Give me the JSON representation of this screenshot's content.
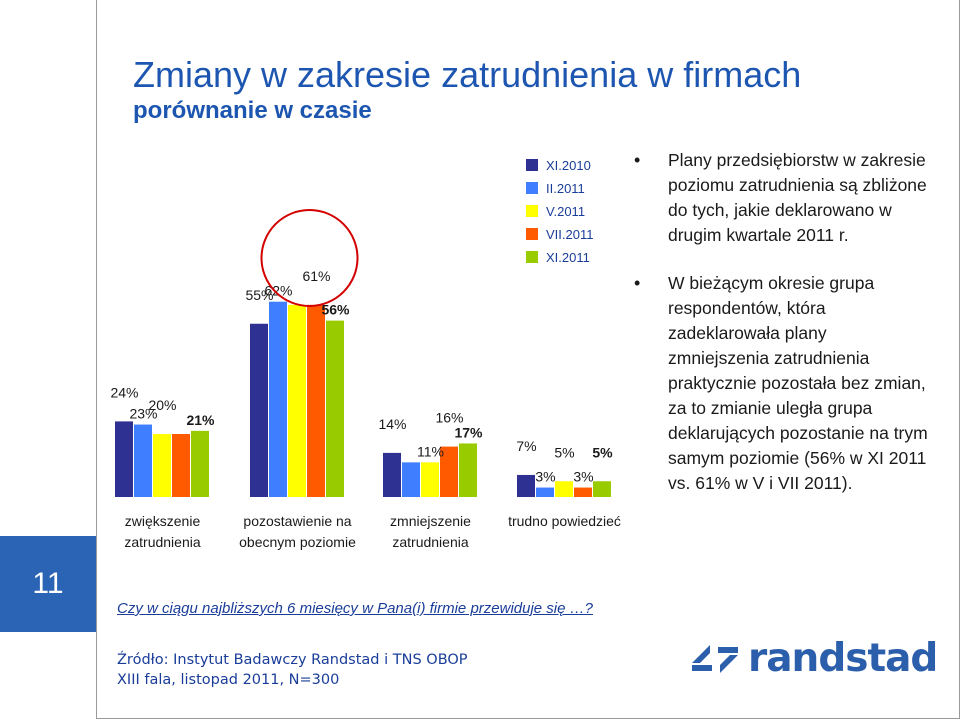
{
  "slide": {
    "title": "Zmiany w zakresie zatrudnienia w firmach",
    "subtitle": "porównanie w czasie",
    "slide_number": "11",
    "question": "Czy w ciągu najbliższych 6 miesięcy w Pana(i) firmie przewiduje się …?",
    "source_line1": "Źródło: Instytut Badawczy Randstad i TNS OBOP",
    "source_line2": "XIII fala, listopad 2011, N=300",
    "logo_text": "randstad"
  },
  "bullets": [
    "Plany przedsiębiorstw w zakresie poziomu zatrudnienia są zbliżone do tych, jakie deklarowano w drugim kwartale 2011 r.",
    "W bieżącym okresie grupa respondentów, która zadeklarowała plany zmniejszenia zatrudnienia praktycznie pozostała bez zmian, za to zmianie uległa grupa deklarujących pozostanie na trym samym poziomie (56% w XI 2011 vs. 61% w V i VII 2011)."
  ],
  "chart_data": {
    "type": "bar",
    "title": "",
    "categories": [
      [
        "zwiększenie",
        "zatrudnienia"
      ],
      [
        "pozostawienie na",
        "obecnym poziomie"
      ],
      [
        "zmniejszenie",
        "zatrudnienia"
      ],
      [
        "trudno powiedzieć"
      ]
    ],
    "series": [
      {
        "name": "XI.2010",
        "color": "#2e3192",
        "values": [
          24,
          55,
          14,
          7
        ]
      },
      {
        "name": "II.2011",
        "color": "#3f7fff",
        "values": [
          23,
          62,
          11,
          3
        ]
      },
      {
        "name": "V.2011",
        "color": "#ffff00",
        "values": [
          20,
          61,
          11,
          5
        ]
      },
      {
        "name": "VII.2011",
        "color": "#ff5a00",
        "values": [
          20,
          61,
          16,
          3
        ]
      },
      {
        "name": "XI.2011",
        "color": "#99cc00",
        "values": [
          21,
          56,
          17,
          5
        ]
      }
    ],
    "data_labels": [
      [
        "24%",
        "23%",
        "20%",
        "",
        "21%"
      ],
      [
        "55%",
        "62%",
        "",
        "61%",
        "56%"
      ],
      [
        "14%",
        "",
        "11%",
        "16%",
        "17%"
      ],
      [
        "7%",
        "3%",
        "5%",
        "3%",
        "5%"
      ]
    ],
    "highlighted_category": 1,
    "ylim": [
      0,
      65
    ],
    "grid": false,
    "legend": "top-right",
    "xlabel": "",
    "ylabel": ""
  }
}
